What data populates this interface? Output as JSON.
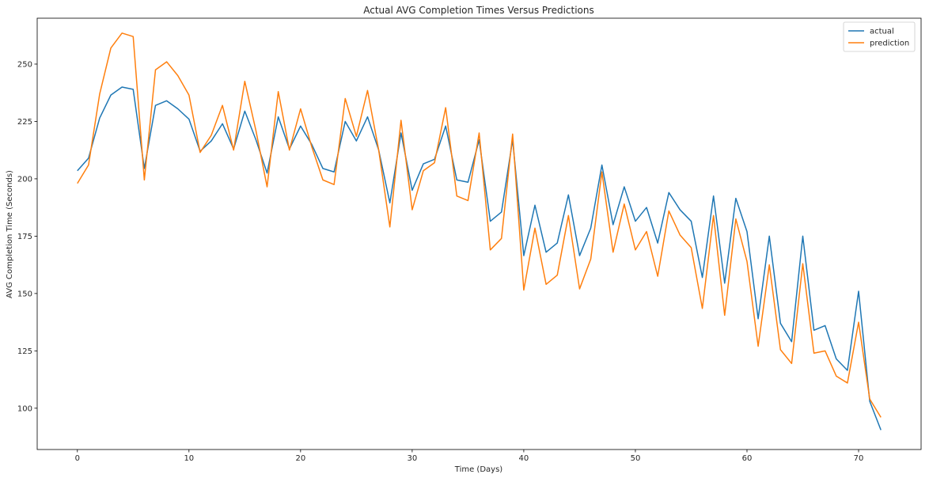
{
  "chart_data": {
    "type": "line",
    "title": "Actual AVG Completion Times Versus Predictions",
    "xlabel": "Time (Days)",
    "ylabel": "AVG Completion Time (Seconds)",
    "xlim": [
      -3.6,
      75.6
    ],
    "ylim": [
      82,
      270
    ],
    "xticks": [
      0,
      10,
      20,
      30,
      40,
      50,
      60,
      70
    ],
    "yticks": [
      100,
      125,
      150,
      175,
      200,
      225,
      250
    ],
    "grid": false,
    "legend_position": "top-right",
    "x": [
      0,
      1,
      2,
      3,
      4,
      5,
      6,
      7,
      8,
      9,
      10,
      11,
      12,
      13,
      14,
      15,
      16,
      17,
      18,
      19,
      20,
      21,
      22,
      23,
      24,
      25,
      26,
      27,
      28,
      29,
      30,
      31,
      32,
      33,
      34,
      35,
      36,
      37,
      38,
      39,
      40,
      41,
      42,
      43,
      44,
      45,
      46,
      47,
      48,
      49,
      50,
      51,
      52,
      53,
      54,
      55,
      56,
      57,
      58,
      59,
      60,
      61,
      62,
      63,
      64,
      65,
      66,
      67,
      68,
      69,
      70,
      71,
      72
    ],
    "series": [
      {
        "name": "actual",
        "color": "#1f77b4",
        "values": [
          203.5,
          209,
          226.5,
          236.5,
          240,
          239,
          204.5,
          232,
          234,
          230.5,
          226,
          212,
          216.5,
          224,
          213,
          229.5,
          217,
          202.5,
          227,
          213,
          223,
          215,
          204.5,
          203,
          225,
          216.5,
          227,
          212.5,
          189.5,
          220,
          195,
          206.5,
          208.5,
          223,
          199.5,
          198.5,
          217,
          181.5,
          185.5,
          217,
          166.5,
          188.5,
          168,
          172,
          193,
          166.5,
          178.5,
          206,
          180,
          196.5,
          181.5,
          187.5,
          172,
          194,
          186.5,
          181.5,
          157,
          192.5,
          154.5,
          191.5,
          177,
          139,
          175,
          137,
          129,
          175,
          134,
          136,
          121.5,
          116.5,
          151,
          103,
          90.5
        ]
      },
      {
        "name": "prediction",
        "color": "#ff7f0e",
        "values": [
          198,
          206,
          237,
          257,
          263.5,
          262,
          199.5,
          247.5,
          251,
          245,
          236.5,
          211.5,
          219,
          232,
          212.5,
          242.5,
          221,
          196.5,
          238,
          212.5,
          230.5,
          214,
          199.5,
          197.5,
          235,
          218.5,
          238.5,
          212.5,
          179,
          225.5,
          186.5,
          203.5,
          207,
          231,
          192.5,
          190.5,
          220,
          169,
          174,
          219.5,
          151.5,
          178.5,
          154,
          158,
          184,
          152,
          165,
          203,
          168,
          189,
          169,
          177,
          157.5,
          186,
          175.5,
          170,
          143.5,
          184,
          140.5,
          182.5,
          164,
          127,
          162.5,
          125.5,
          119.5,
          163,
          124,
          125,
          114,
          111,
          137.5,
          104,
          96
        ]
      }
    ]
  }
}
